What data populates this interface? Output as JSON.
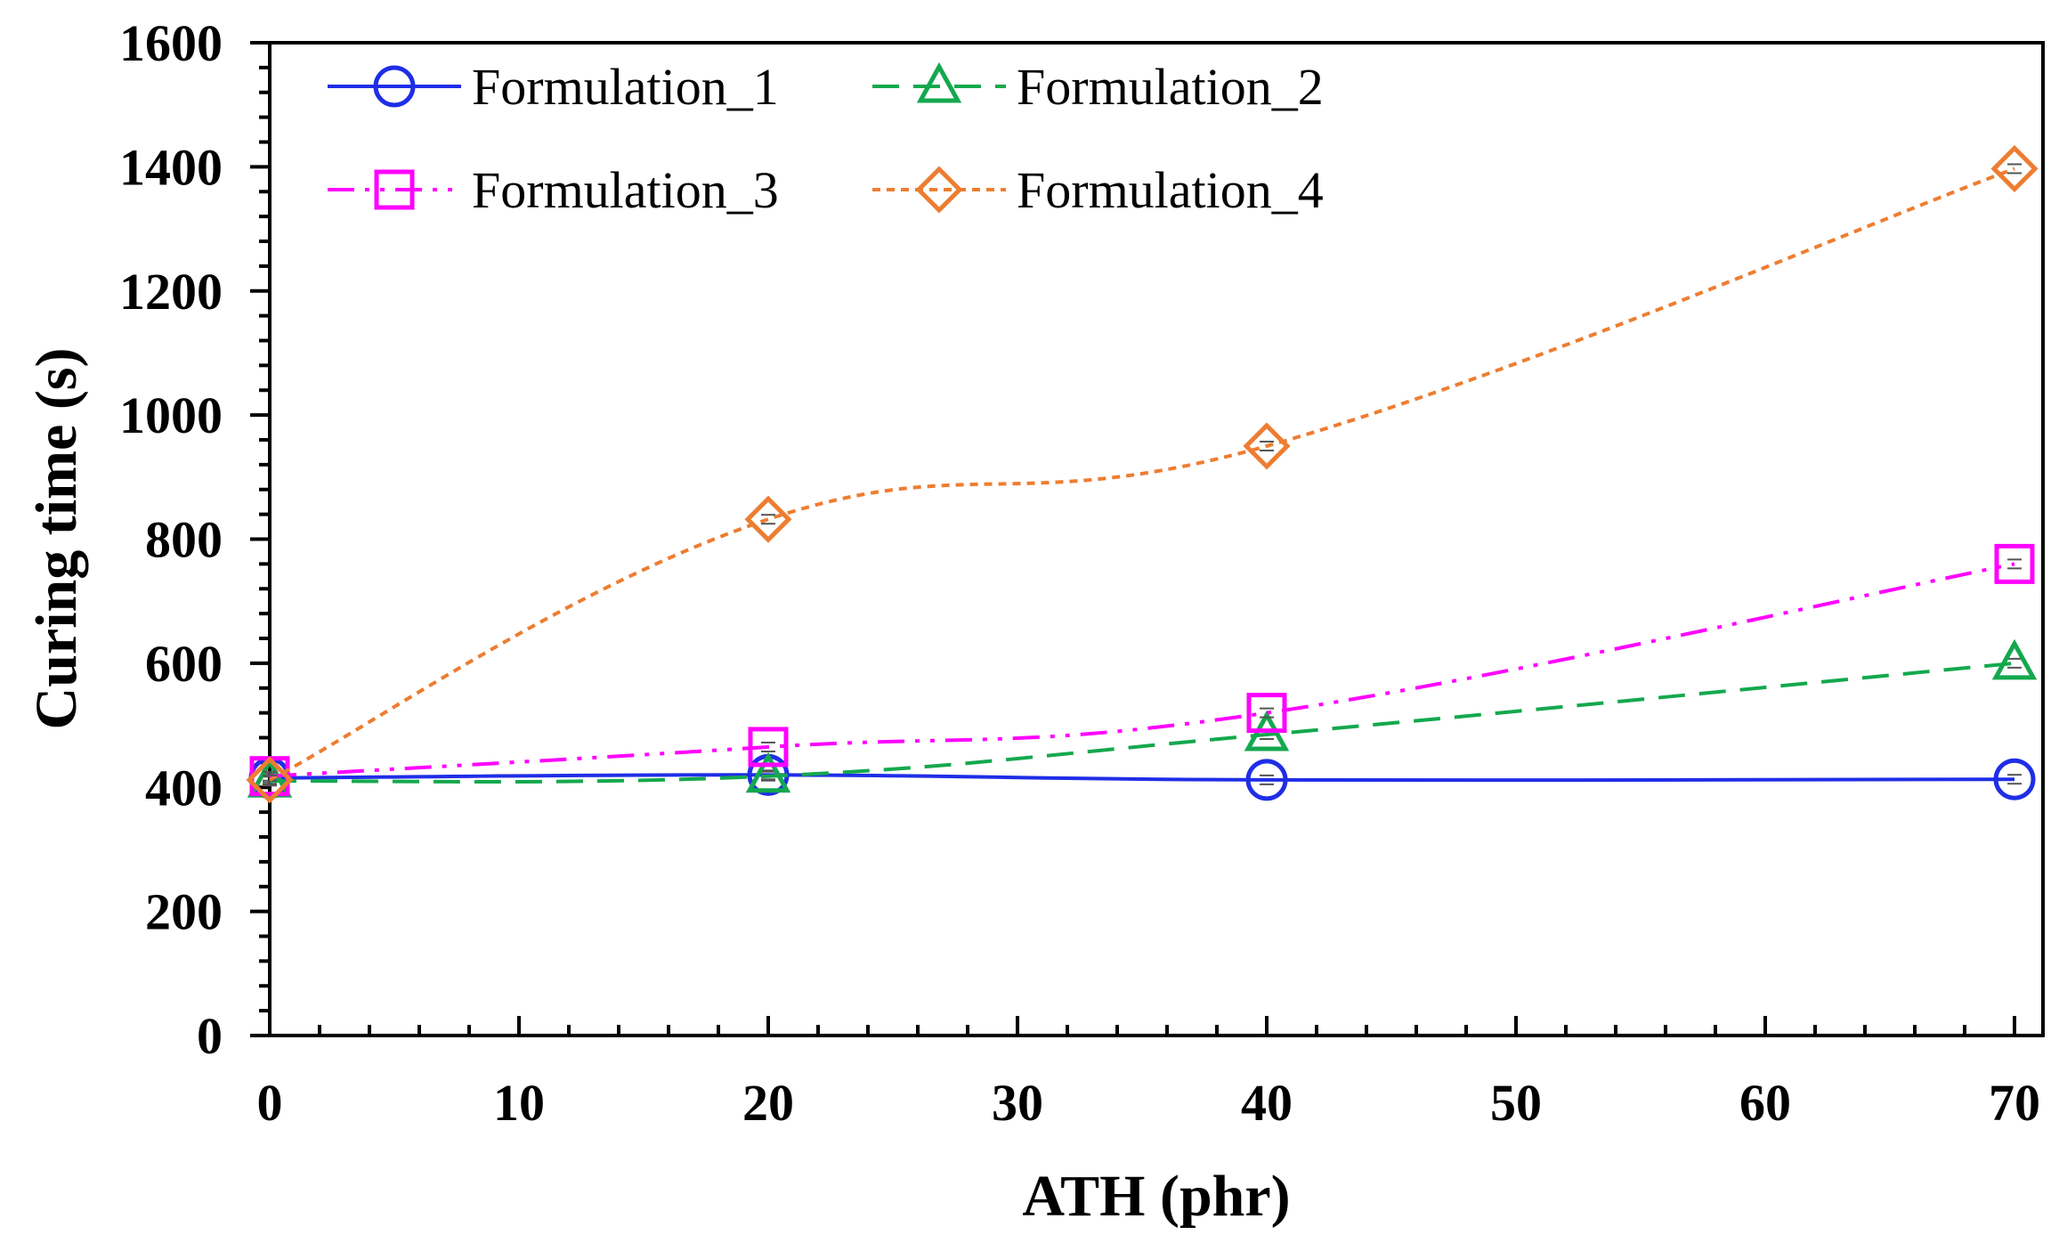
{
  "chart_data": {
    "type": "line",
    "title": "",
    "xlabel": "ATH (phr)",
    "ylabel": "Curing time (s)",
    "xlim": [
      0,
      70
    ],
    "ylim": [
      0,
      1600
    ],
    "xticks": [
      0,
      10,
      20,
      30,
      40,
      50,
      60,
      70
    ],
    "yticks": [
      0,
      200,
      400,
      600,
      800,
      1000,
      1200,
      1400,
      1600
    ],
    "x": [
      0,
      20,
      40,
      70
    ],
    "legend_position": "top-left",
    "series": [
      {
        "name": "Formulation_1",
        "values": [
          415,
          420,
          412,
          413
        ],
        "color": "#1f2ee6",
        "marker": "circle",
        "line": "solid"
      },
      {
        "name": "Formulation_2",
        "values": [
          410,
          418,
          485,
          600
        ],
        "color": "#14a84e",
        "marker": "triangle",
        "line": "dashed"
      },
      {
        "name": "Formulation_3",
        "values": [
          418,
          465,
          520,
          760
        ],
        "color": "#ff00ff",
        "marker": "square",
        "line": "dash-dot-dot"
      },
      {
        "name": "Formulation_4",
        "values": [
          412,
          832,
          950,
          1397
        ],
        "color": "#ed7d31",
        "marker": "diamond",
        "line": "dotted"
      }
    ]
  }
}
